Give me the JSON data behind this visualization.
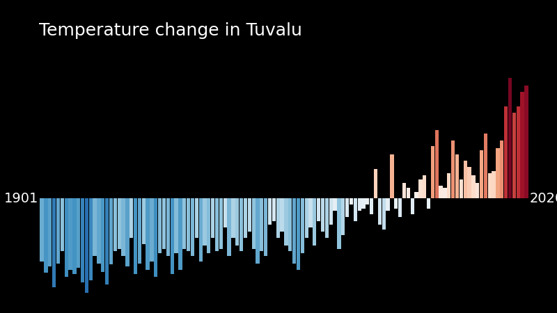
{
  "title": "Temperature change in Tuvalu",
  "years": [
    1901,
    1902,
    1903,
    1904,
    1905,
    1906,
    1907,
    1908,
    1909,
    1910,
    1911,
    1912,
    1913,
    1914,
    1915,
    1916,
    1917,
    1918,
    1919,
    1920,
    1921,
    1922,
    1923,
    1924,
    1925,
    1926,
    1927,
    1928,
    1929,
    1930,
    1931,
    1932,
    1933,
    1934,
    1935,
    1936,
    1937,
    1938,
    1939,
    1940,
    1941,
    1942,
    1943,
    1944,
    1945,
    1946,
    1947,
    1948,
    1949,
    1950,
    1951,
    1952,
    1953,
    1954,
    1955,
    1956,
    1957,
    1958,
    1959,
    1960,
    1961,
    1962,
    1963,
    1964,
    1965,
    1966,
    1967,
    1968,
    1969,
    1970,
    1971,
    1972,
    1973,
    1974,
    1975,
    1976,
    1977,
    1978,
    1979,
    1980,
    1981,
    1982,
    1983,
    1984,
    1985,
    1986,
    1987,
    1988,
    1989,
    1990,
    1991,
    1992,
    1993,
    1994,
    1995,
    1996,
    1997,
    1998,
    1999,
    2000,
    2001,
    2002,
    2003,
    2004,
    2005,
    2006,
    2007,
    2008,
    2009,
    2010,
    2011,
    2012,
    2013,
    2014,
    2015,
    2016,
    2017,
    2018,
    2019,
    2020
  ],
  "anomalies": [
    -0.6,
    -0.71,
    -0.65,
    -0.85,
    -0.62,
    -0.5,
    -0.75,
    -0.68,
    -0.72,
    -0.66,
    -0.8,
    -0.9,
    -0.78,
    -0.55,
    -0.62,
    -0.7,
    -0.82,
    -0.63,
    -0.5,
    -0.48,
    -0.55,
    -0.65,
    -0.38,
    -0.72,
    -0.62,
    -0.44,
    -0.68,
    -0.6,
    -0.75,
    -0.52,
    -0.48,
    -0.55,
    -0.72,
    -0.52,
    -0.68,
    -0.48,
    -0.5,
    -0.55,
    -0.38,
    -0.6,
    -0.45,
    -0.52,
    -0.38,
    -0.5,
    -0.48,
    -0.28,
    -0.55,
    -0.38,
    -0.45,
    -0.5,
    -0.38,
    -0.32,
    -0.48,
    -0.62,
    -0.5,
    -0.55,
    -0.25,
    -0.22,
    -0.38,
    -0.32,
    -0.45,
    -0.5,
    -0.62,
    -0.68,
    -0.52,
    -0.38,
    -0.28,
    -0.45,
    -0.22,
    -0.32,
    -0.38,
    -0.25,
    -0.12,
    -0.48,
    -0.35,
    -0.18,
    -0.06,
    -0.22,
    -0.12,
    -0.1,
    -0.06,
    -0.15,
    0.28,
    -0.25,
    -0.3,
    -0.12,
    0.42,
    -0.1,
    -0.18,
    0.15,
    0.1,
    -0.15,
    0.06,
    0.18,
    0.22,
    -0.1,
    0.5,
    0.65,
    0.12,
    0.1,
    0.24,
    0.55,
    0.42,
    0.18,
    0.36,
    0.3,
    0.22,
    0.15,
    0.46,
    0.62,
    0.24,
    0.26,
    0.48,
    0.55,
    0.88,
    1.15,
    0.82,
    0.88,
    1.02,
    1.08
  ],
  "background_color": "#000000",
  "text_color": "#ffffff",
  "title_fontsize": 18,
  "label_fontsize": 14,
  "year_start": 1901,
  "year_end": 2020,
  "vmin": -1.2,
  "vmax": 1.2,
  "bar_width": 0.9
}
